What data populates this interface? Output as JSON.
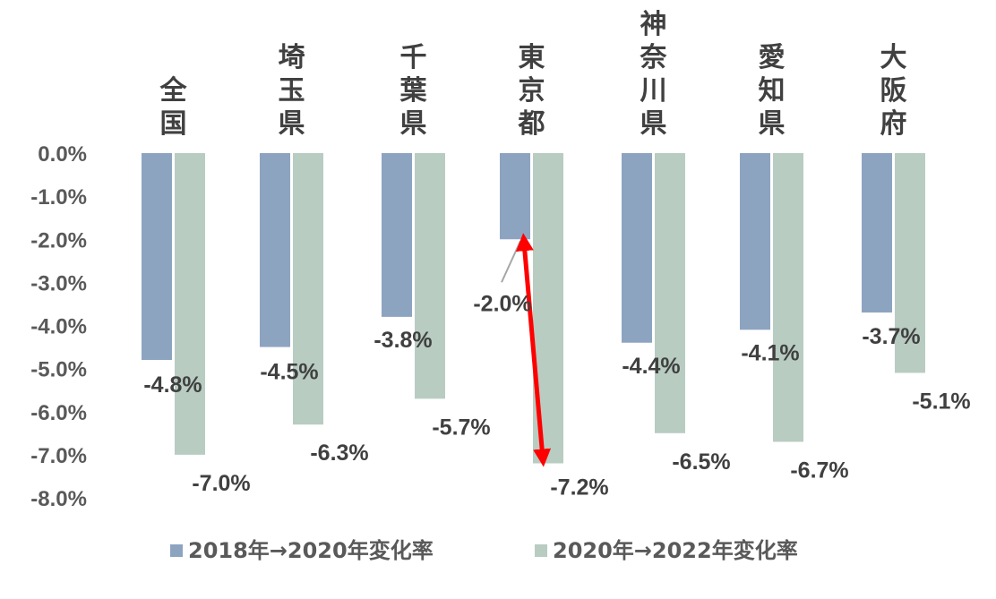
{
  "chart_data": {
    "type": "bar",
    "categories": [
      "全国",
      "埼玉県",
      "千葉県",
      "東京都",
      "神奈川県",
      "愛知県",
      "大阪府"
    ],
    "series": [
      {
        "name": "2018年→2020年変化率",
        "color": "#8DA4C0",
        "values": [
          -4.8,
          -4.5,
          -3.8,
          -2.0,
          -4.4,
          -4.1,
          -3.7
        ]
      },
      {
        "name": "2020年→2022年変化率",
        "color": "#B8CCC2",
        "values": [
          -7.0,
          -6.3,
          -5.7,
          -7.2,
          -6.5,
          -6.7,
          -5.1
        ]
      }
    ],
    "series_labels": [
      [
        "-4.8%",
        "-4.5%",
        "-3.8%",
        "-2.0%",
        "-4.4%",
        "-4.1%",
        "-3.7%"
      ],
      [
        "-7.0%",
        "-6.3%",
        "-5.7%",
        "-7.2%",
        "-6.5%",
        "-6.7%",
        "-5.1%"
      ]
    ],
    "yticks": [
      0.0,
      -1.0,
      -2.0,
      -3.0,
      -4.0,
      -5.0,
      -6.0,
      -7.0,
      -8.0
    ],
    "ytick_labels": [
      "0.0%",
      "-1.0%",
      "-2.0%",
      "-3.0%",
      "-4.0%",
      "-5.0%",
      "-6.0%",
      "-7.0%",
      "-8.0%"
    ],
    "ylim": [
      -8.0,
      0.0
    ],
    "title": "",
    "xlabel": "",
    "ylabel": "",
    "grid": false,
    "legend_position": "bottom",
    "category_axis_position": "top",
    "annotation": {
      "type": "double-arrow",
      "category": "東京都",
      "color": "#FF0000",
      "from_value": -2.0,
      "to_value": -7.2
    }
  }
}
